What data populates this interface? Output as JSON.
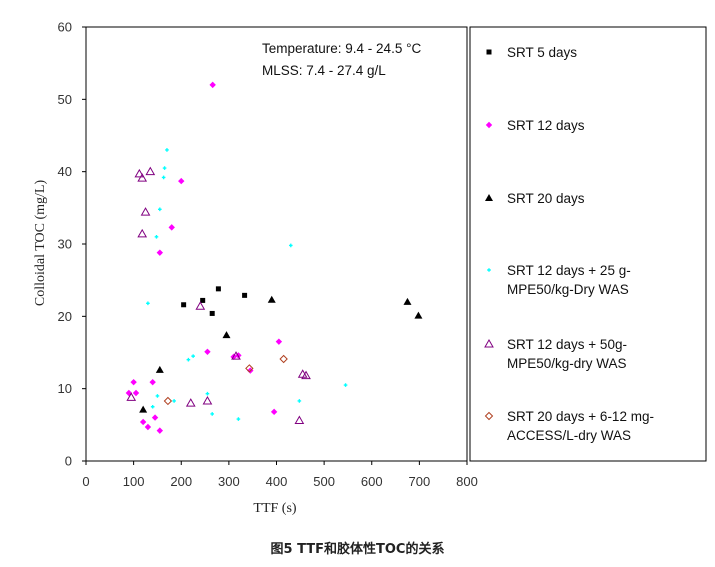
{
  "caption": "图5  TTF和胶体性TOC的关系",
  "chart_data": {
    "type": "scatter",
    "xlabel": "TTF (s)",
    "ylabel": "Colloidal TOC (mg/L)",
    "xlim": [
      0,
      800
    ],
    "ylim": [
      0,
      60
    ],
    "xticks": [
      0,
      100,
      200,
      300,
      400,
      500,
      600,
      700,
      800
    ],
    "yticks": [
      0,
      10,
      20,
      30,
      40,
      50,
      60
    ],
    "grid": false,
    "legend_position": "right",
    "annotations": [
      "Temperature: 9.4 - 24.5 °C",
      "MLSS: 7.4 - 27.4 g/L"
    ],
    "series": [
      {
        "name": "SRT 5 days",
        "marker": "square",
        "color": "#000000",
        "x": [
          205,
          245,
          265,
          278,
          333
        ],
        "y": [
          21.6,
          22.2,
          20.4,
          23.8,
          22.9
        ]
      },
      {
        "name": "SRT 12 days",
        "marker": "diamond",
        "color": "#ff00ff",
        "x": [
          266,
          200,
          180,
          155,
          100,
          90,
          105,
          140,
          130,
          120,
          145,
          155,
          255,
          310,
          320,
          345,
          405,
          395
        ],
        "y": [
          52.0,
          38.7,
          32.3,
          28.8,
          10.9,
          9.4,
          9.4,
          10.9,
          4.7,
          5.4,
          6.0,
          4.2,
          15.1,
          14.4,
          14.6,
          12.5,
          16.5,
          6.8
        ]
      },
      {
        "name": "SRT 20 days",
        "marker": "triangle",
        "color": "#000000",
        "x": [
          155,
          120,
          295,
          390,
          675,
          698
        ],
        "y": [
          12.6,
          7.1,
          17.4,
          22.3,
          22.0,
          20.1
        ]
      },
      {
        "name": "SRT 12 days + 25 g-MPE50/kg-Dry WAS",
        "marker": "cross",
        "color": "#00ffff",
        "x": [
          170,
          165,
          163,
          155,
          148,
          130,
          225,
          215,
          255,
          265,
          320,
          430,
          448,
          545,
          185,
          150,
          140
        ],
        "y": [
          43.0,
          40.5,
          39.2,
          34.8,
          31.0,
          21.8,
          14.5,
          14.0,
          9.3,
          6.5,
          5.8,
          29.8,
          8.3,
          10.5,
          8.3,
          9.0,
          7.5
        ]
      },
      {
        "name": "SRT 12 days + 50g-MPE50/kg-dry WAS",
        "marker": "open-triangle",
        "color": "#800080",
        "x": [
          112,
          118,
          135,
          125,
          118,
          240,
          220,
          255,
          315,
          455,
          462,
          448,
          95
        ],
        "y": [
          39.7,
          39.1,
          40.0,
          34.4,
          31.4,
          21.4,
          8.0,
          8.3,
          14.5,
          12.0,
          11.8,
          5.6,
          8.8
        ]
      },
      {
        "name": "SRT 20 days + 6-12 mg-ACCESS/L-dry WAS",
        "marker": "open-diamond",
        "color": "#b04020",
        "x": [
          172,
          343,
          415
        ],
        "y": [
          8.3,
          12.8,
          14.1
        ]
      }
    ],
    "legend_labels": [
      [
        "SRT 5 days"
      ],
      [
        "SRT 12 days"
      ],
      [
        "SRT 20 days"
      ],
      [
        "SRT 12 days + 25 g-",
        "MPE50/kg-Dry WAS"
      ],
      [
        "SRT 12 days + 50g-",
        "MPE50/kg-dry WAS"
      ],
      [
        "SRT 20 days + 6-12 mg-",
        "ACCESS/L-dry WAS"
      ]
    ]
  }
}
